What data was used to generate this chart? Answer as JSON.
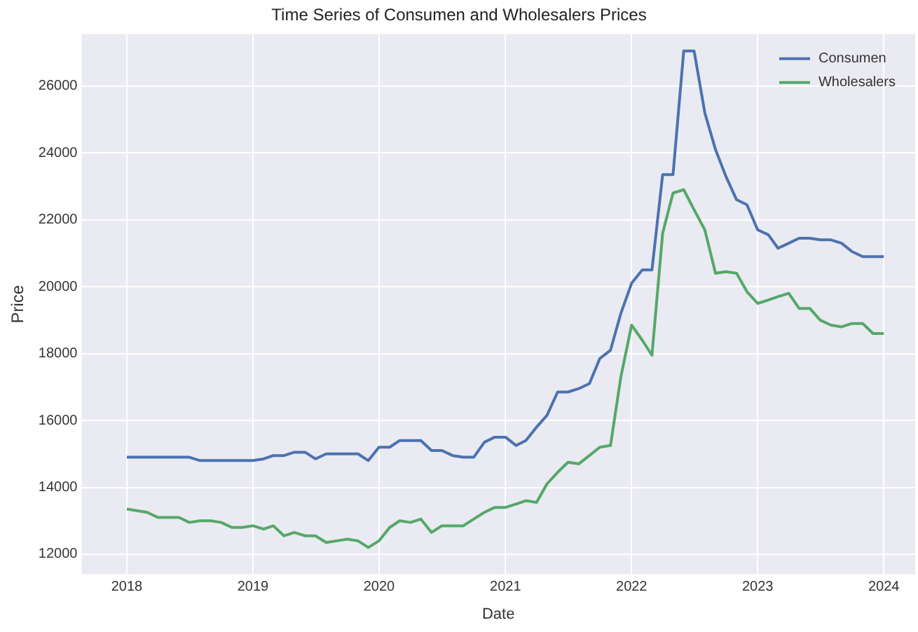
{
  "chart_data": {
    "type": "line",
    "title": "Time Series of Consumen and Wholesalers Prices",
    "xlabel": "Date",
    "ylabel": "Price",
    "x": [
      "2018-01",
      "2018-02",
      "2018-03",
      "2018-04",
      "2018-05",
      "2018-06",
      "2018-07",
      "2018-08",
      "2018-09",
      "2018-10",
      "2018-11",
      "2018-12",
      "2019-01",
      "2019-02",
      "2019-03",
      "2019-04",
      "2019-05",
      "2019-06",
      "2019-07",
      "2019-08",
      "2019-09",
      "2019-10",
      "2019-11",
      "2019-12",
      "2020-01",
      "2020-02",
      "2020-03",
      "2020-04",
      "2020-05",
      "2020-06",
      "2020-07",
      "2020-08",
      "2020-09",
      "2020-10",
      "2020-11",
      "2020-12",
      "2021-01",
      "2021-02",
      "2021-03",
      "2021-04",
      "2021-05",
      "2021-06",
      "2021-07",
      "2021-08",
      "2021-09",
      "2021-10",
      "2021-11",
      "2021-12",
      "2022-01",
      "2022-02",
      "2022-03",
      "2022-04",
      "2022-05",
      "2022-06",
      "2022-07",
      "2022-08",
      "2022-09",
      "2022-10",
      "2022-11",
      "2022-12",
      "2023-01",
      "2023-02",
      "2023-03",
      "2023-04",
      "2023-05",
      "2023-06",
      "2023-07",
      "2023-08",
      "2023-09",
      "2023-10",
      "2023-11",
      "2023-12",
      "2024-01"
    ],
    "series": [
      {
        "name": "Consumen",
        "color": "#4c72b0",
        "values": [
          14900,
          14900,
          14900,
          14900,
          14900,
          14900,
          14900,
          14800,
          14800,
          14800,
          14800,
          14800,
          14800,
          14850,
          14950,
          14950,
          15050,
          15050,
          14850,
          15000,
          15000,
          15000,
          15000,
          14800,
          15200,
          15200,
          15400,
          15400,
          15400,
          15100,
          15100,
          14950,
          14900,
          14900,
          15350,
          15500,
          15500,
          15250,
          15400,
          15800,
          16150,
          16850,
          16850,
          16950,
          17100,
          17850,
          18100,
          19200,
          20100,
          20500,
          20500,
          23350,
          23350,
          27050,
          27050,
          25200,
          24100,
          23300,
          22600,
          22450,
          21700,
          21550,
          21150,
          21300,
          21450,
          21450,
          21400,
          21400,
          21300,
          21050,
          20900,
          20900,
          20900
        ]
      },
      {
        "name": "Wholesalers",
        "color": "#55a868",
        "values": [
          13350,
          13300,
          13250,
          13100,
          13100,
          13100,
          12950,
          13000,
          13000,
          12950,
          12800,
          12800,
          12850,
          12750,
          12850,
          12550,
          12650,
          12550,
          12550,
          12350,
          12400,
          12450,
          12400,
          12200,
          12400,
          12800,
          13000,
          12950,
          13050,
          12650,
          12850,
          12850,
          12850,
          13050,
          13250,
          13400,
          13400,
          13500,
          13600,
          13550,
          14100,
          14450,
          14750,
          14700,
          14950,
          15200,
          15250,
          17300,
          18850,
          18400,
          17950,
          21600,
          22800,
          22900,
          22300,
          21700,
          20400,
          20450,
          20400,
          19850,
          19500,
          19600,
          19700,
          19800,
          19350,
          19350,
          19000,
          18850,
          18800,
          18900,
          18900,
          18600,
          18600
        ]
      }
    ],
    "xlim": [
      "2017-08-23",
      "2024-04-01"
    ],
    "xticks": [
      "2018",
      "2019",
      "2020",
      "2021",
      "2022",
      "2023",
      "2024"
    ],
    "ylim": [
      11400,
      27550
    ],
    "yticks": [
      12000,
      14000,
      16000,
      18000,
      20000,
      22000,
      24000,
      26000
    ],
    "grid": true,
    "legend": "top right",
    "marker": "none",
    "line_style": "solid"
  }
}
